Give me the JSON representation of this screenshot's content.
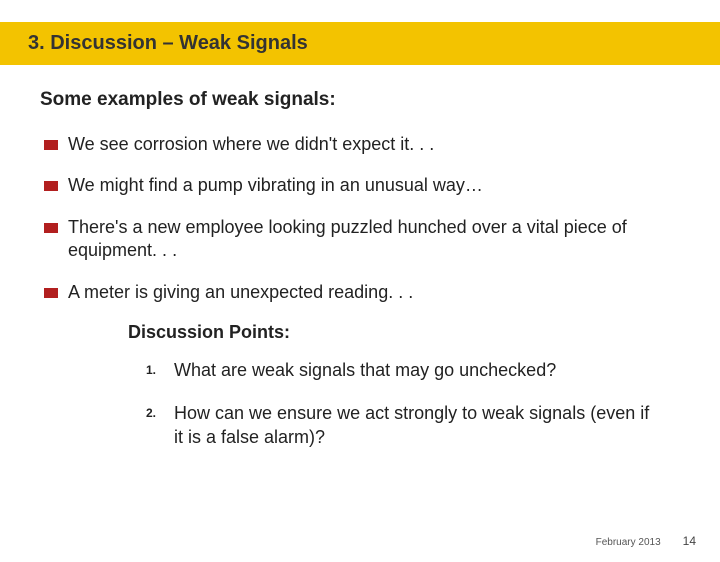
{
  "colors": {
    "title_bar_bg": "#f3c300",
    "bullet_marker": "#b21f1f",
    "text": "#222222",
    "background": "#ffffff"
  },
  "title": "3. Discussion – Weak Signals",
  "subheading": "Some examples of weak signals:",
  "bullets": [
    "We see corrosion where we didn't expect it. . .",
    "We might find a pump vibrating in an unusual way…",
    "There's a new employee looking puzzled hunched over a vital piece of equipment. . .",
    "A meter is giving an unexpected reading. . ."
  ],
  "discussion_heading": "Discussion Points:",
  "discussion_points": [
    {
      "num": "1.",
      "text": "What are weak signals that may go unchecked?"
    },
    {
      "num": "2.",
      "text": "How can we ensure we act strongly to weak signals (even if it is a false alarm)?"
    }
  ],
  "footer": {
    "date": "February 2013",
    "page": "14"
  }
}
